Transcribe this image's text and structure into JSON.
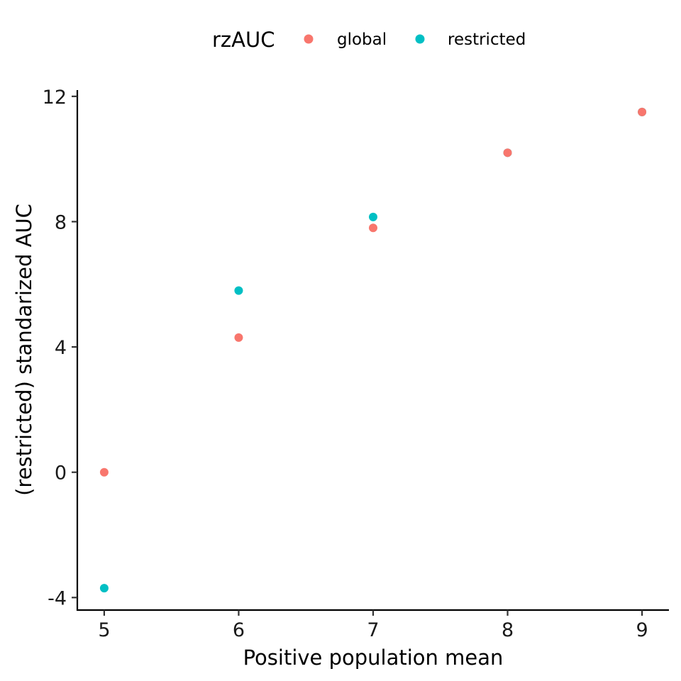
{
  "chart_data": {
    "type": "scatter",
    "title": "",
    "xlabel": "Positive population mean",
    "ylabel": "(restricted) standarized AUC",
    "xlim": [
      4.8,
      9.2
    ],
    "ylim": [
      -4.4,
      12.2
    ],
    "x_ticks": [
      5,
      6,
      7,
      8,
      9
    ],
    "x_tick_labels": [
      "5",
      "6",
      "7",
      "8",
      "9"
    ],
    "y_ticks": [
      -4,
      0,
      4,
      8,
      12
    ],
    "y_tick_labels": [
      "-4",
      "0",
      "4",
      "8",
      "12"
    ],
    "grid": false,
    "legend": {
      "title": "rzAUC",
      "position": "top"
    },
    "series": [
      {
        "name": "global",
        "color": "#F8766D",
        "points": [
          {
            "x": 5,
            "y": 0.0
          },
          {
            "x": 6,
            "y": 4.3
          },
          {
            "x": 7,
            "y": 7.8
          },
          {
            "x": 8,
            "y": 10.2
          },
          {
            "x": 9,
            "y": 11.5
          }
        ]
      },
      {
        "name": "restricted",
        "color": "#00BFC4",
        "points": [
          {
            "x": 5,
            "y": -3.7
          },
          {
            "x": 6,
            "y": 5.8
          },
          {
            "x": 7,
            "y": 8.15
          },
          {
            "x": 8,
            "y": 10.2
          },
          {
            "x": 9,
            "y": 11.5
          }
        ]
      }
    ]
  }
}
